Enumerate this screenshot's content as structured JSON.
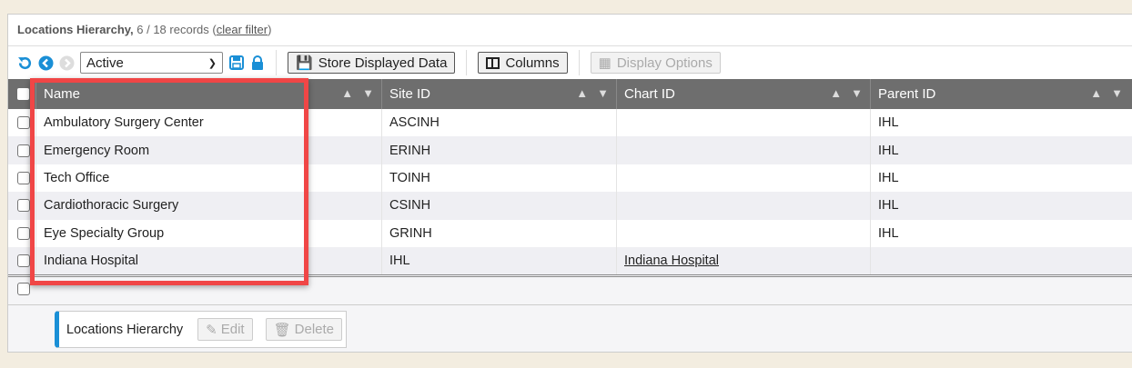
{
  "title": {
    "name": "Locations Hierarchy,",
    "count": "6 / 18 records",
    "clear_open": "(",
    "clear_filter": "clear filter",
    "clear_close": ")"
  },
  "toolbar": {
    "filter_value": "Active",
    "store_label": "Store Displayed Data",
    "columns_label": "Columns",
    "display_options_label": "Display Options"
  },
  "columns": [
    "Name",
    "Site ID",
    "Chart ID",
    "Parent ID"
  ],
  "rows": [
    {
      "name": "Ambulatory Surgery Center",
      "site": "ASCINH",
      "chart": "",
      "parent": "IHL"
    },
    {
      "name": "Emergency Room",
      "site": "ERINH",
      "chart": "",
      "parent": "IHL"
    },
    {
      "name": "Tech Office",
      "site": "TOINH",
      "chart": "",
      "parent": "IHL"
    },
    {
      "name": "Cardiothoracic Surgery",
      "site": "CSINH",
      "chart": "",
      "parent": "IHL"
    },
    {
      "name": "Eye Specialty Group",
      "site": "GRINH",
      "chart": "",
      "parent": "IHL"
    },
    {
      "name": "Indiana Hospital",
      "site": "IHL",
      "chart": "Indiana Hospital",
      "parent": ""
    }
  ],
  "footer": {
    "label": "Locations Hierarchy",
    "edit": "Edit",
    "delete": "Delete"
  },
  "colors": {
    "accent": "#1a8fd6",
    "header": "#6e6e6e",
    "highlight": "#f04646",
    "background": "#f3ede0"
  }
}
